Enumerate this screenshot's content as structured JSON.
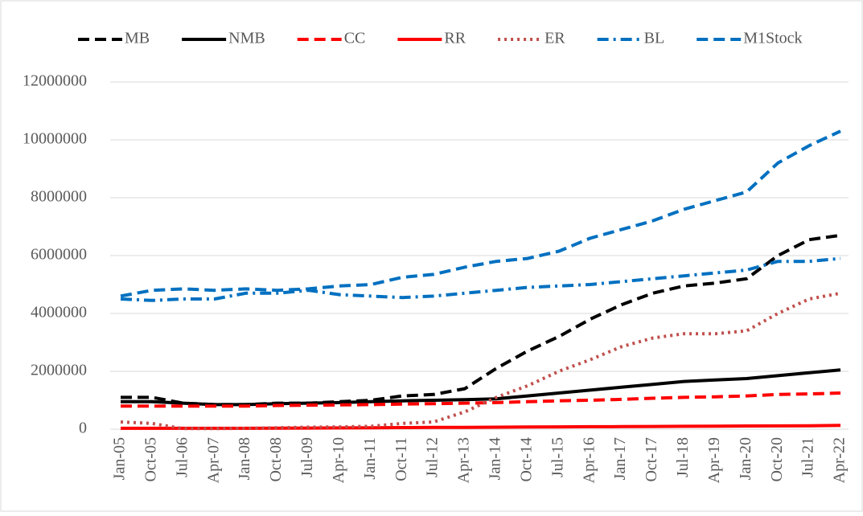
{
  "chart_data": {
    "type": "line",
    "categories": [
      "Jan-05",
      "Oct-05",
      "Jul-06",
      "Apr-07",
      "Jan-08",
      "Oct-08",
      "Jul-09",
      "Apr-10",
      "Jan-11",
      "Oct-11",
      "Jul-12",
      "Apr-13",
      "Jan-14",
      "Oct-14",
      "Jul-15",
      "Apr-16",
      "Jan-17",
      "Oct-17",
      "Jul-18",
      "Apr-19",
      "Jan-20",
      "Oct-20",
      "Jul-21",
      "Apr-22"
    ],
    "series": [
      {
        "name": "MB",
        "color": "#000000",
        "dash": "dash",
        "values": [
          1100000,
          1100000,
          900000,
          850000,
          850000,
          900000,
          900000,
          950000,
          1000000,
          1150000,
          1200000,
          1400000,
          2100000,
          2700000,
          3200000,
          3800000,
          4300000,
          4700000,
          4950000,
          5050000,
          5200000,
          6000000,
          6550000,
          6700000
        ]
      },
      {
        "name": "NMB",
        "color": "#000000",
        "dash": "solid",
        "values": [
          950000,
          950000,
          900000,
          850000,
          850000,
          880000,
          900000,
          920000,
          950000,
          980000,
          1000000,
          1020000,
          1050000,
          1150000,
          1250000,
          1350000,
          1450000,
          1550000,
          1650000,
          1700000,
          1750000,
          1850000,
          1950000,
          2050000
        ]
      },
      {
        "name": "CC",
        "color": "#ff0000",
        "dash": "dash",
        "values": [
          800000,
          800000,
          800000,
          800000,
          800000,
          820000,
          830000,
          840000,
          850000,
          870000,
          880000,
          900000,
          920000,
          950000,
          980000,
          1000000,
          1030000,
          1070000,
          1100000,
          1120000,
          1150000,
          1200000,
          1220000,
          1250000
        ]
      },
      {
        "name": "RR",
        "color": "#ff0000",
        "dash": "solid",
        "values": [
          30000,
          30000,
          30000,
          30000,
          30000,
          35000,
          40000,
          45000,
          50000,
          55000,
          60000,
          65000,
          70000,
          75000,
          80000,
          85000,
          90000,
          95000,
          100000,
          105000,
          110000,
          115000,
          120000,
          130000
        ]
      },
      {
        "name": "ER",
        "color": "#c0504d",
        "dash": "dot",
        "values": [
          250000,
          200000,
          20000,
          20000,
          30000,
          50000,
          70000,
          80000,
          100000,
          200000,
          250000,
          600000,
          1100000,
          1500000,
          2000000,
          2400000,
          2850000,
          3150000,
          3300000,
          3300000,
          3400000,
          4000000,
          4500000,
          4700000
        ]
      },
      {
        "name": "BL",
        "color": "#0070c0",
        "dash": "dashdot",
        "values": [
          4500000,
          4450000,
          4500000,
          4500000,
          4700000,
          4700000,
          4800000,
          4650000,
          4600000,
          4550000,
          4600000,
          4700000,
          4800000,
          4900000,
          4950000,
          5000000,
          5100000,
          5200000,
          5300000,
          5400000,
          5500000,
          5800000,
          5800000,
          5900000
        ]
      },
      {
        "name": "M1Stock",
        "color": "#0070c0",
        "dash": "dash",
        "values": [
          4600000,
          4800000,
          4850000,
          4800000,
          4850000,
          4800000,
          4850000,
          4950000,
          5000000,
          5250000,
          5350000,
          5600000,
          5800000,
          5900000,
          6150000,
          6600000,
          6900000,
          7200000,
          7600000,
          7900000,
          8200000,
          9200000,
          9800000,
          10300000
        ]
      }
    ],
    "ylim": [
      0,
      12000000
    ],
    "yticks": [
      0,
      2000000,
      4000000,
      6000000,
      8000000,
      10000000,
      12000000
    ],
    "grid": true,
    "legend": "top"
  }
}
